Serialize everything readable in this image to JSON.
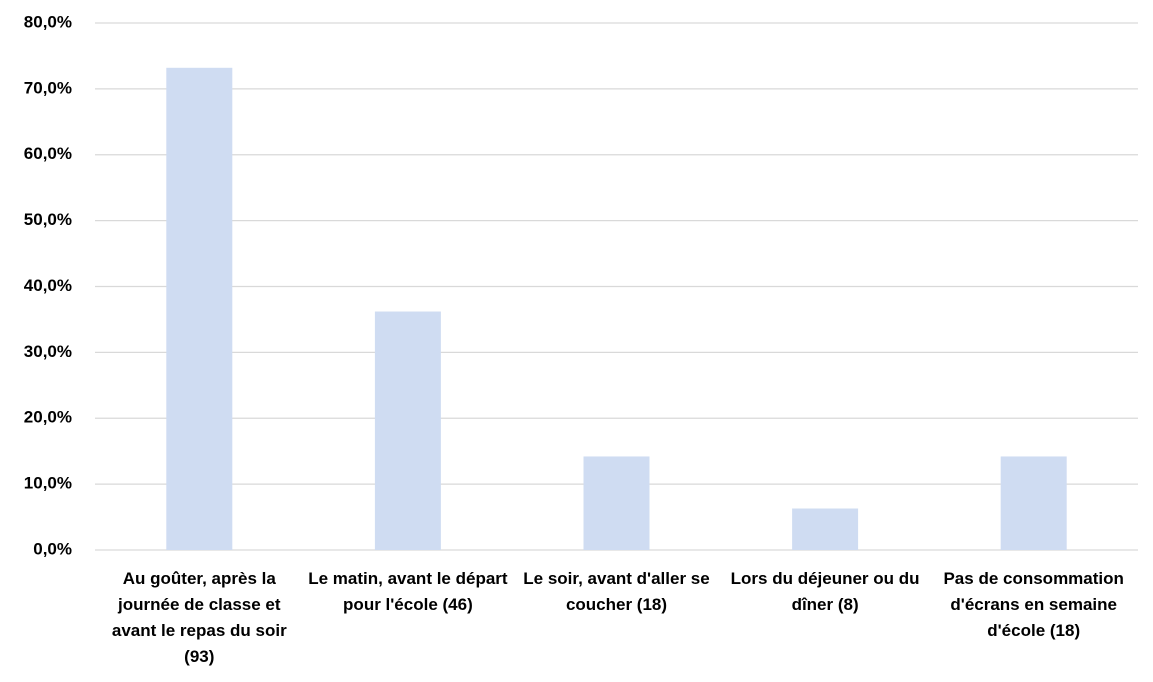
{
  "chart_data": {
    "type": "bar",
    "categories": [
      "Au goûter, après la journée de classe et avant le repas du soir (93)",
      "Le matin, avant le départ pour l'école (46)",
      "Le soir, avant d'aller se coucher (18)",
      "Lors du déjeuner ou du dîner (8)",
      "Pas de consommation d'écrans en semaine d'école (18)"
    ],
    "values": [
      73.2,
      36.2,
      14.2,
      6.3,
      14.2
    ],
    "color": "#cfdcf2",
    "ylim": [
      0,
      80
    ],
    "yticks": [
      {
        "value": 0,
        "label": "0,0%"
      },
      {
        "value": 10,
        "label": "10,0%"
      },
      {
        "value": 20,
        "label": "20,0%"
      },
      {
        "value": 30,
        "label": "30,0%"
      },
      {
        "value": 40,
        "label": "40,0%"
      },
      {
        "value": 50,
        "label": "50,0%"
      },
      {
        "value": 60,
        "label": "60,0%"
      },
      {
        "value": 70,
        "label": "70,0%"
      },
      {
        "value": 80,
        "label": "80,0%"
      }
    ],
    "grid": true
  }
}
